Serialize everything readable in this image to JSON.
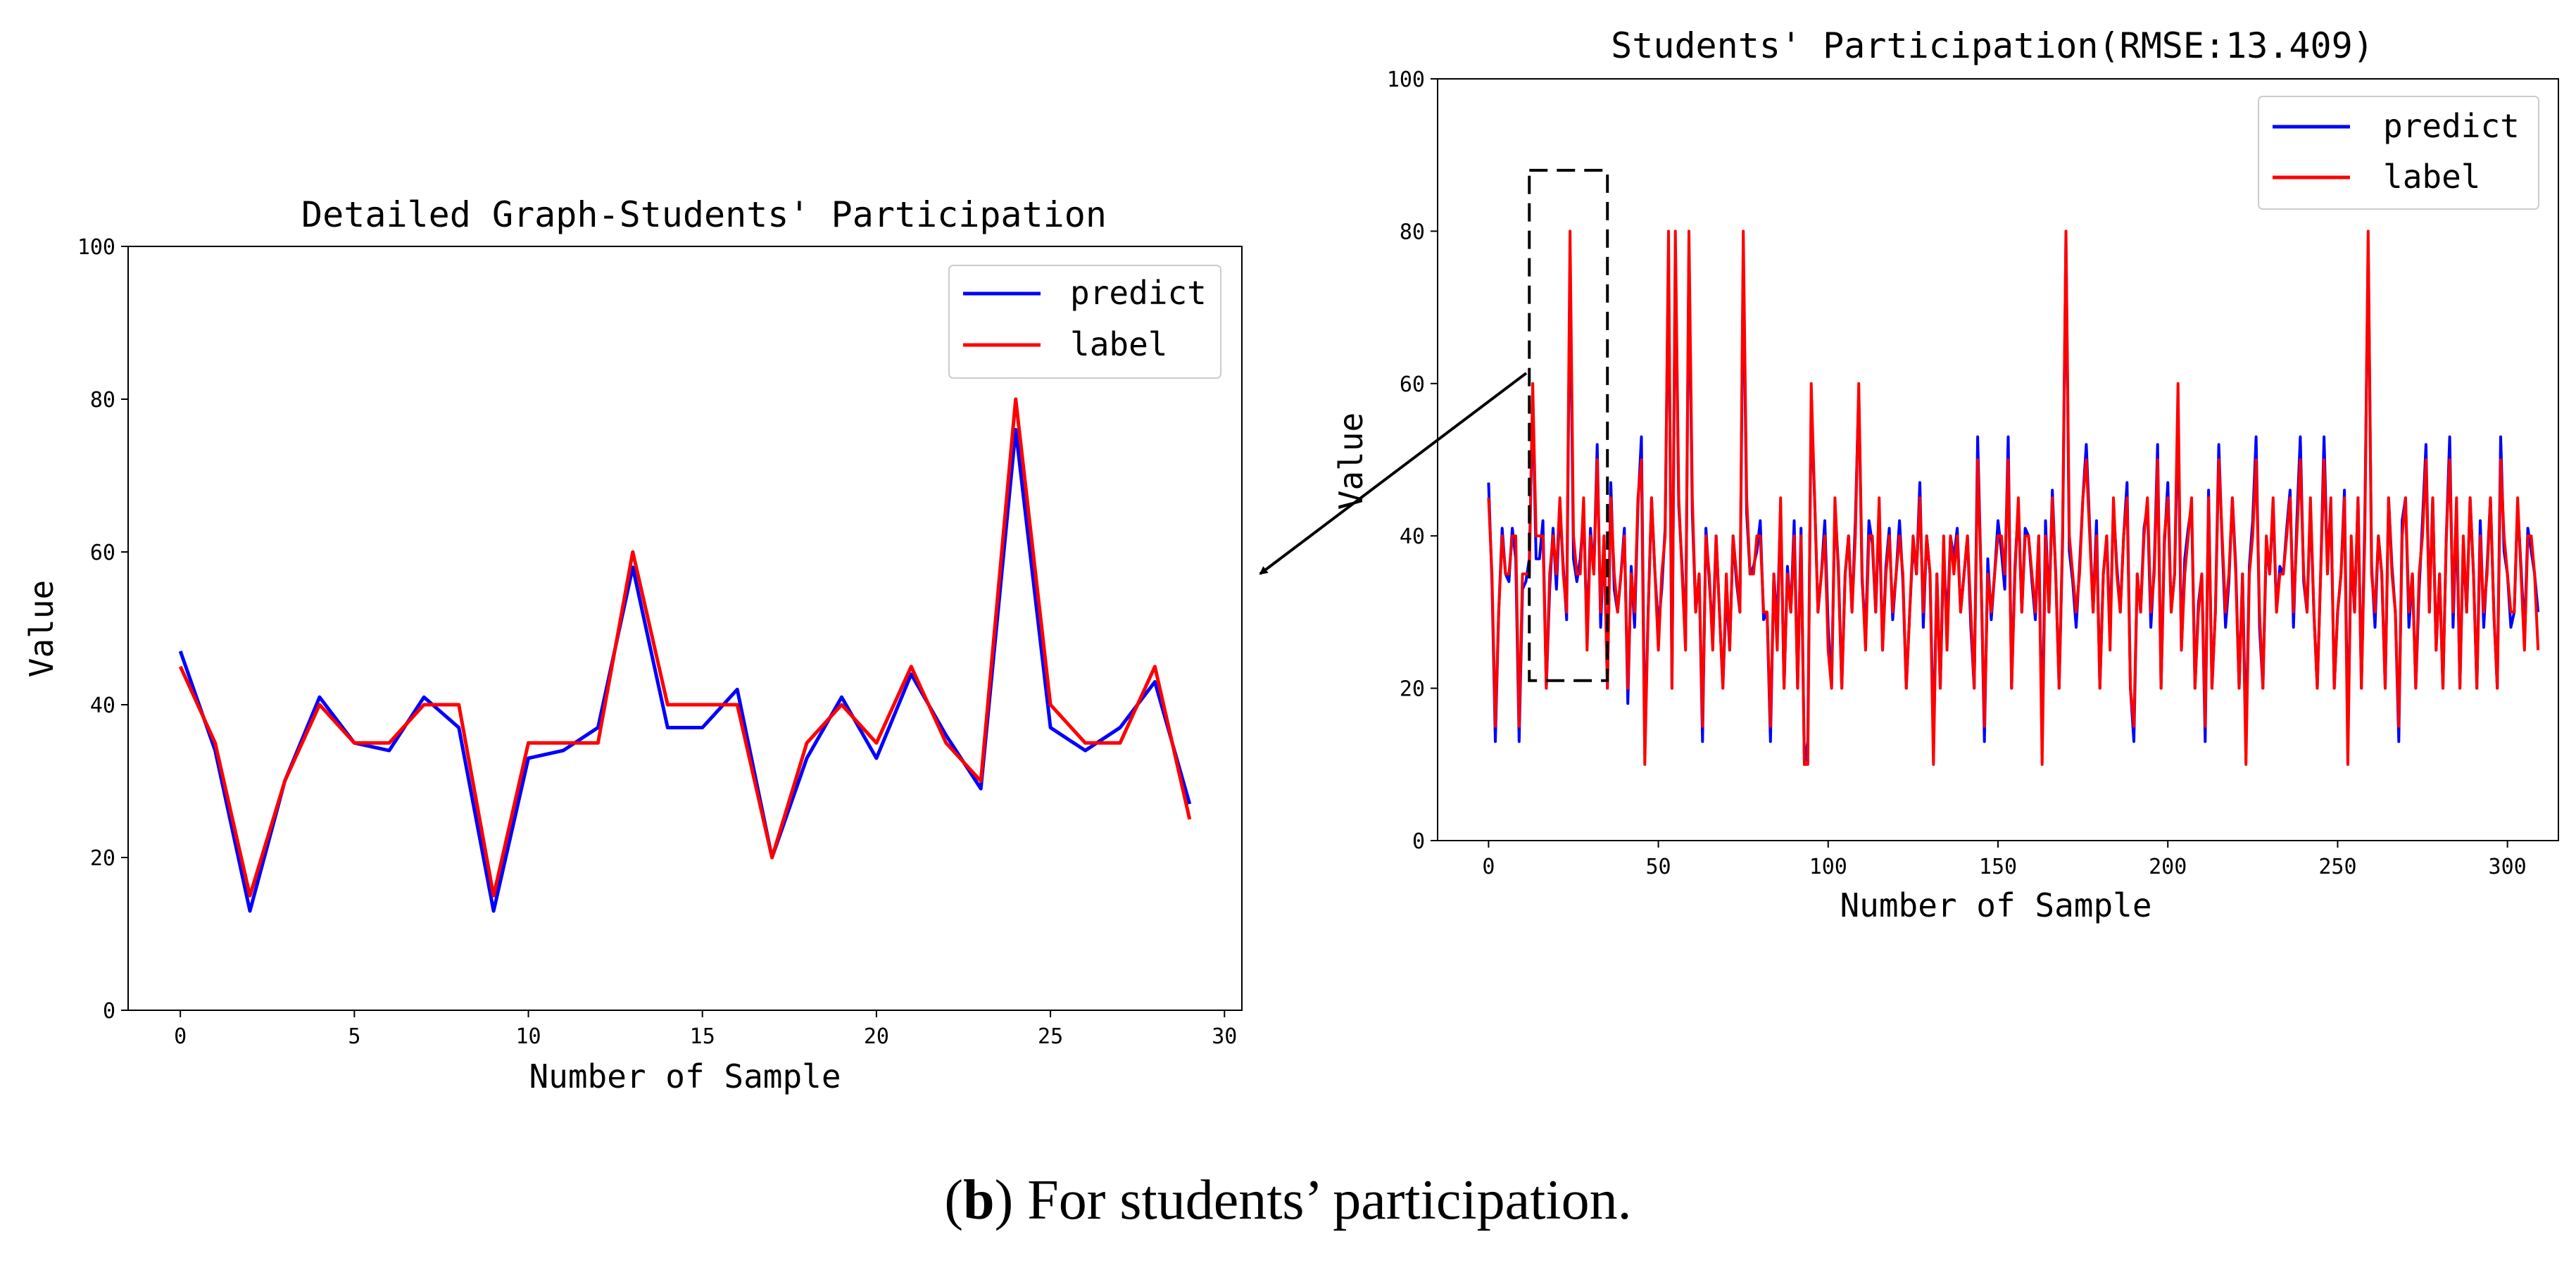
{
  "colors": {
    "predict": "#0000ff",
    "label": "#ff0000"
  },
  "caption": {
    "open": "(",
    "letter": "b",
    "rest": ") For students’ participation."
  },
  "chart_data": [
    {
      "id": "left",
      "type": "line",
      "title": "Detailed Graph-Students' Participation",
      "xlabel": "Number of Sample",
      "ylabel": "Value",
      "xlim": [
        -1.5,
        30.5
      ],
      "ylim": [
        0,
        100
      ],
      "xticks": [
        0,
        5,
        10,
        15,
        20,
        25,
        30
      ],
      "yticks": [
        0,
        20,
        40,
        60,
        80,
        100
      ],
      "legend_position": "top-right",
      "x": [
        0,
        1,
        2,
        3,
        4,
        5,
        6,
        7,
        8,
        9,
        10,
        11,
        12,
        13,
        14,
        15,
        16,
        17,
        18,
        19,
        20,
        21,
        22,
        23,
        24,
        25,
        26,
        27,
        28,
        29
      ],
      "series": [
        {
          "name": "predict",
          "color_key": "predict",
          "values": [
            47,
            34,
            13,
            30,
            41,
            35,
            34,
            41,
            37,
            13,
            33,
            34,
            37,
            58,
            37,
            37,
            42,
            20,
            33,
            41,
            33,
            44,
            36,
            29,
            76,
            37,
            34,
            37,
            43,
            27
          ]
        },
        {
          "name": "label",
          "color_key": "label",
          "values": [
            45,
            35,
            15,
            30,
            40,
            35,
            35,
            40,
            40,
            15,
            35,
            35,
            35,
            60,
            40,
            40,
            40,
            20,
            35,
            40,
            35,
            45,
            35,
            30,
            80,
            40,
            35,
            35,
            45,
            25
          ]
        }
      ]
    },
    {
      "id": "right",
      "type": "line",
      "title": "Students' Participation(RMSE:13.409)",
      "xlabel": "Number of Sample",
      "ylabel": "Value",
      "xlim": [
        -15,
        315
      ],
      "ylim": [
        0,
        100
      ],
      "xticks": [
        0,
        50,
        100,
        150,
        200,
        250,
        300
      ],
      "yticks": [
        0,
        20,
        40,
        60,
        80,
        100
      ],
      "legend_position": "top-right",
      "zoom_region": {
        "x": [
          12,
          35
        ],
        "y": [
          21,
          88
        ]
      },
      "x_start": 0,
      "series": [
        {
          "name": "predict",
          "color_key": "predict",
          "values": [
            47,
            34,
            13,
            30,
            41,
            35,
            34,
            41,
            37,
            13,
            33,
            34,
            37,
            58,
            37,
            37,
            42,
            20,
            33,
            41,
            33,
            44,
            36,
            29,
            76,
            37,
            34,
            37,
            43,
            27,
            41,
            35,
            52,
            28,
            40,
            20,
            47,
            33,
            30,
            35,
            41,
            18,
            36,
            28,
            44,
            53,
            13,
            30,
            45,
            35,
            28,
            33,
            41,
            77,
            20,
            78,
            44,
            36,
            26,
            77,
            43,
            30,
            35,
            13,
            41,
            34,
            27,
            40,
            30,
            20,
            33,
            25,
            40,
            34,
            30,
            77,
            43,
            35,
            36,
            38,
            42,
            29,
            30,
            13,
            35,
            28,
            44,
            20,
            36,
            30,
            42,
            20,
            41,
            10,
            13,
            57,
            45,
            30,
            35,
            42,
            28,
            20,
            44,
            36,
            20,
            35,
            40,
            30,
            42,
            59,
            34,
            27,
            42,
            39,
            30,
            43,
            25,
            36,
            41,
            29,
            35,
            42,
            34,
            20,
            30,
            39,
            35,
            47,
            28,
            40,
            35,
            13,
            35,
            20,
            38,
            28,
            40,
            37,
            41,
            30,
            35,
            40,
            28,
            20,
            53,
            35,
            13,
            37,
            29,
            35,
            42,
            38,
            33,
            53,
            20,
            36,
            44,
            30,
            41,
            40,
            34,
            29,
            40,
            13,
            42,
            30,
            46,
            35,
            20,
            39,
            79,
            38,
            34,
            28,
            36,
            45,
            52,
            41,
            30,
            42,
            20,
            35,
            40,
            27,
            44,
            36,
            30,
            40,
            47,
            20,
            13,
            35,
            30,
            41,
            44,
            28,
            36,
            52,
            20,
            39,
            47,
            30,
            35,
            56,
            25,
            37,
            41,
            44,
            20,
            31,
            35,
            13,
            46,
            20,
            30,
            52,
            39,
            28,
            34,
            45,
            36,
            20,
            35,
            13,
            36,
            42,
            53,
            28,
            20,
            39,
            35,
            44,
            30,
            36,
            35,
            41,
            46,
            28,
            42,
            53,
            34,
            30,
            44,
            30,
            20,
            35,
            53,
            36,
            44,
            20,
            30,
            35,
            46,
            13,
            38,
            30,
            45,
            20,
            42,
            78,
            36,
            28,
            40,
            35,
            20,
            45,
            36,
            30,
            13,
            42,
            45,
            28,
            35,
            20,
            33,
            42,
            52,
            30,
            45,
            25,
            35,
            20,
            40,
            53,
            28,
            43,
            20,
            39,
            30,
            45,
            35,
            20,
            42,
            28,
            36,
            45,
            30,
            20,
            53,
            38,
            35,
            28,
            30,
            44,
            36,
            27,
            41,
            38,
            35,
            30
          ]
        },
        {
          "name": "label",
          "color_key": "label",
          "values": [
            45,
            35,
            15,
            30,
            40,
            35,
            35,
            40,
            40,
            15,
            35,
            35,
            35,
            60,
            40,
            40,
            40,
            20,
            35,
            40,
            35,
            45,
            35,
            30,
            80,
            40,
            35,
            35,
            45,
            25,
            40,
            35,
            50,
            30,
            40,
            20,
            45,
            35,
            30,
            35,
            40,
            20,
            35,
            30,
            45,
            50,
            10,
            30,
            45,
            35,
            25,
            35,
            40,
            80,
            20,
            80,
            45,
            35,
            25,
            80,
            45,
            30,
            35,
            15,
            40,
            35,
            25,
            40,
            30,
            20,
            35,
            25,
            40,
            35,
            30,
            80,
            45,
            35,
            35,
            40,
            40,
            30,
            30,
            15,
            35,
            25,
            45,
            20,
            35,
            30,
            40,
            20,
            40,
            10,
            10,
            60,
            45,
            30,
            35,
            40,
            25,
            20,
            45,
            35,
            20,
            35,
            40,
            30,
            40,
            60,
            35,
            25,
            40,
            40,
            30,
            45,
            25,
            35,
            40,
            30,
            35,
            40,
            35,
            20,
            30,
            40,
            35,
            45,
            30,
            40,
            35,
            10,
            35,
            20,
            40,
            25,
            40,
            35,
            40,
            30,
            35,
            40,
            30,
            20,
            50,
            35,
            15,
            35,
            30,
            35,
            40,
            40,
            35,
            50,
            20,
            35,
            45,
            30,
            40,
            40,
            35,
            30,
            40,
            10,
            40,
            30,
            45,
            35,
            20,
            40,
            80,
            40,
            35,
            30,
            35,
            45,
            50,
            40,
            30,
            40,
            20,
            35,
            40,
            25,
            45,
            35,
            30,
            40,
            45,
            20,
            15,
            35,
            30,
            40,
            45,
            30,
            35,
            50,
            20,
            40,
            45,
            30,
            35,
            60,
            25,
            35,
            40,
            45,
            20,
            30,
            35,
            15,
            45,
            20,
            30,
            50,
            40,
            30,
            35,
            45,
            35,
            20,
            35,
            10,
            35,
            40,
            50,
            30,
            20,
            40,
            35,
            45,
            30,
            35,
            35,
            40,
            45,
            30,
            40,
            50,
            35,
            30,
            45,
            30,
            20,
            35,
            50,
            35,
            45,
            20,
            30,
            35,
            45,
            10,
            40,
            30,
            45,
            20,
            40,
            80,
            35,
            30,
            40,
            35,
            20,
            45,
            35,
            30,
            15,
            40,
            45,
            30,
            35,
            20,
            35,
            40,
            50,
            30,
            45,
            25,
            35,
            20,
            40,
            50,
            30,
            45,
            20,
            40,
            30,
            45,
            35,
            20,
            40,
            30,
            35,
            45,
            30,
            20,
            50,
            40,
            35,
            30,
            30,
            45,
            35,
            25,
            40,
            40,
            35,
            25
          ]
        }
      ]
    }
  ]
}
